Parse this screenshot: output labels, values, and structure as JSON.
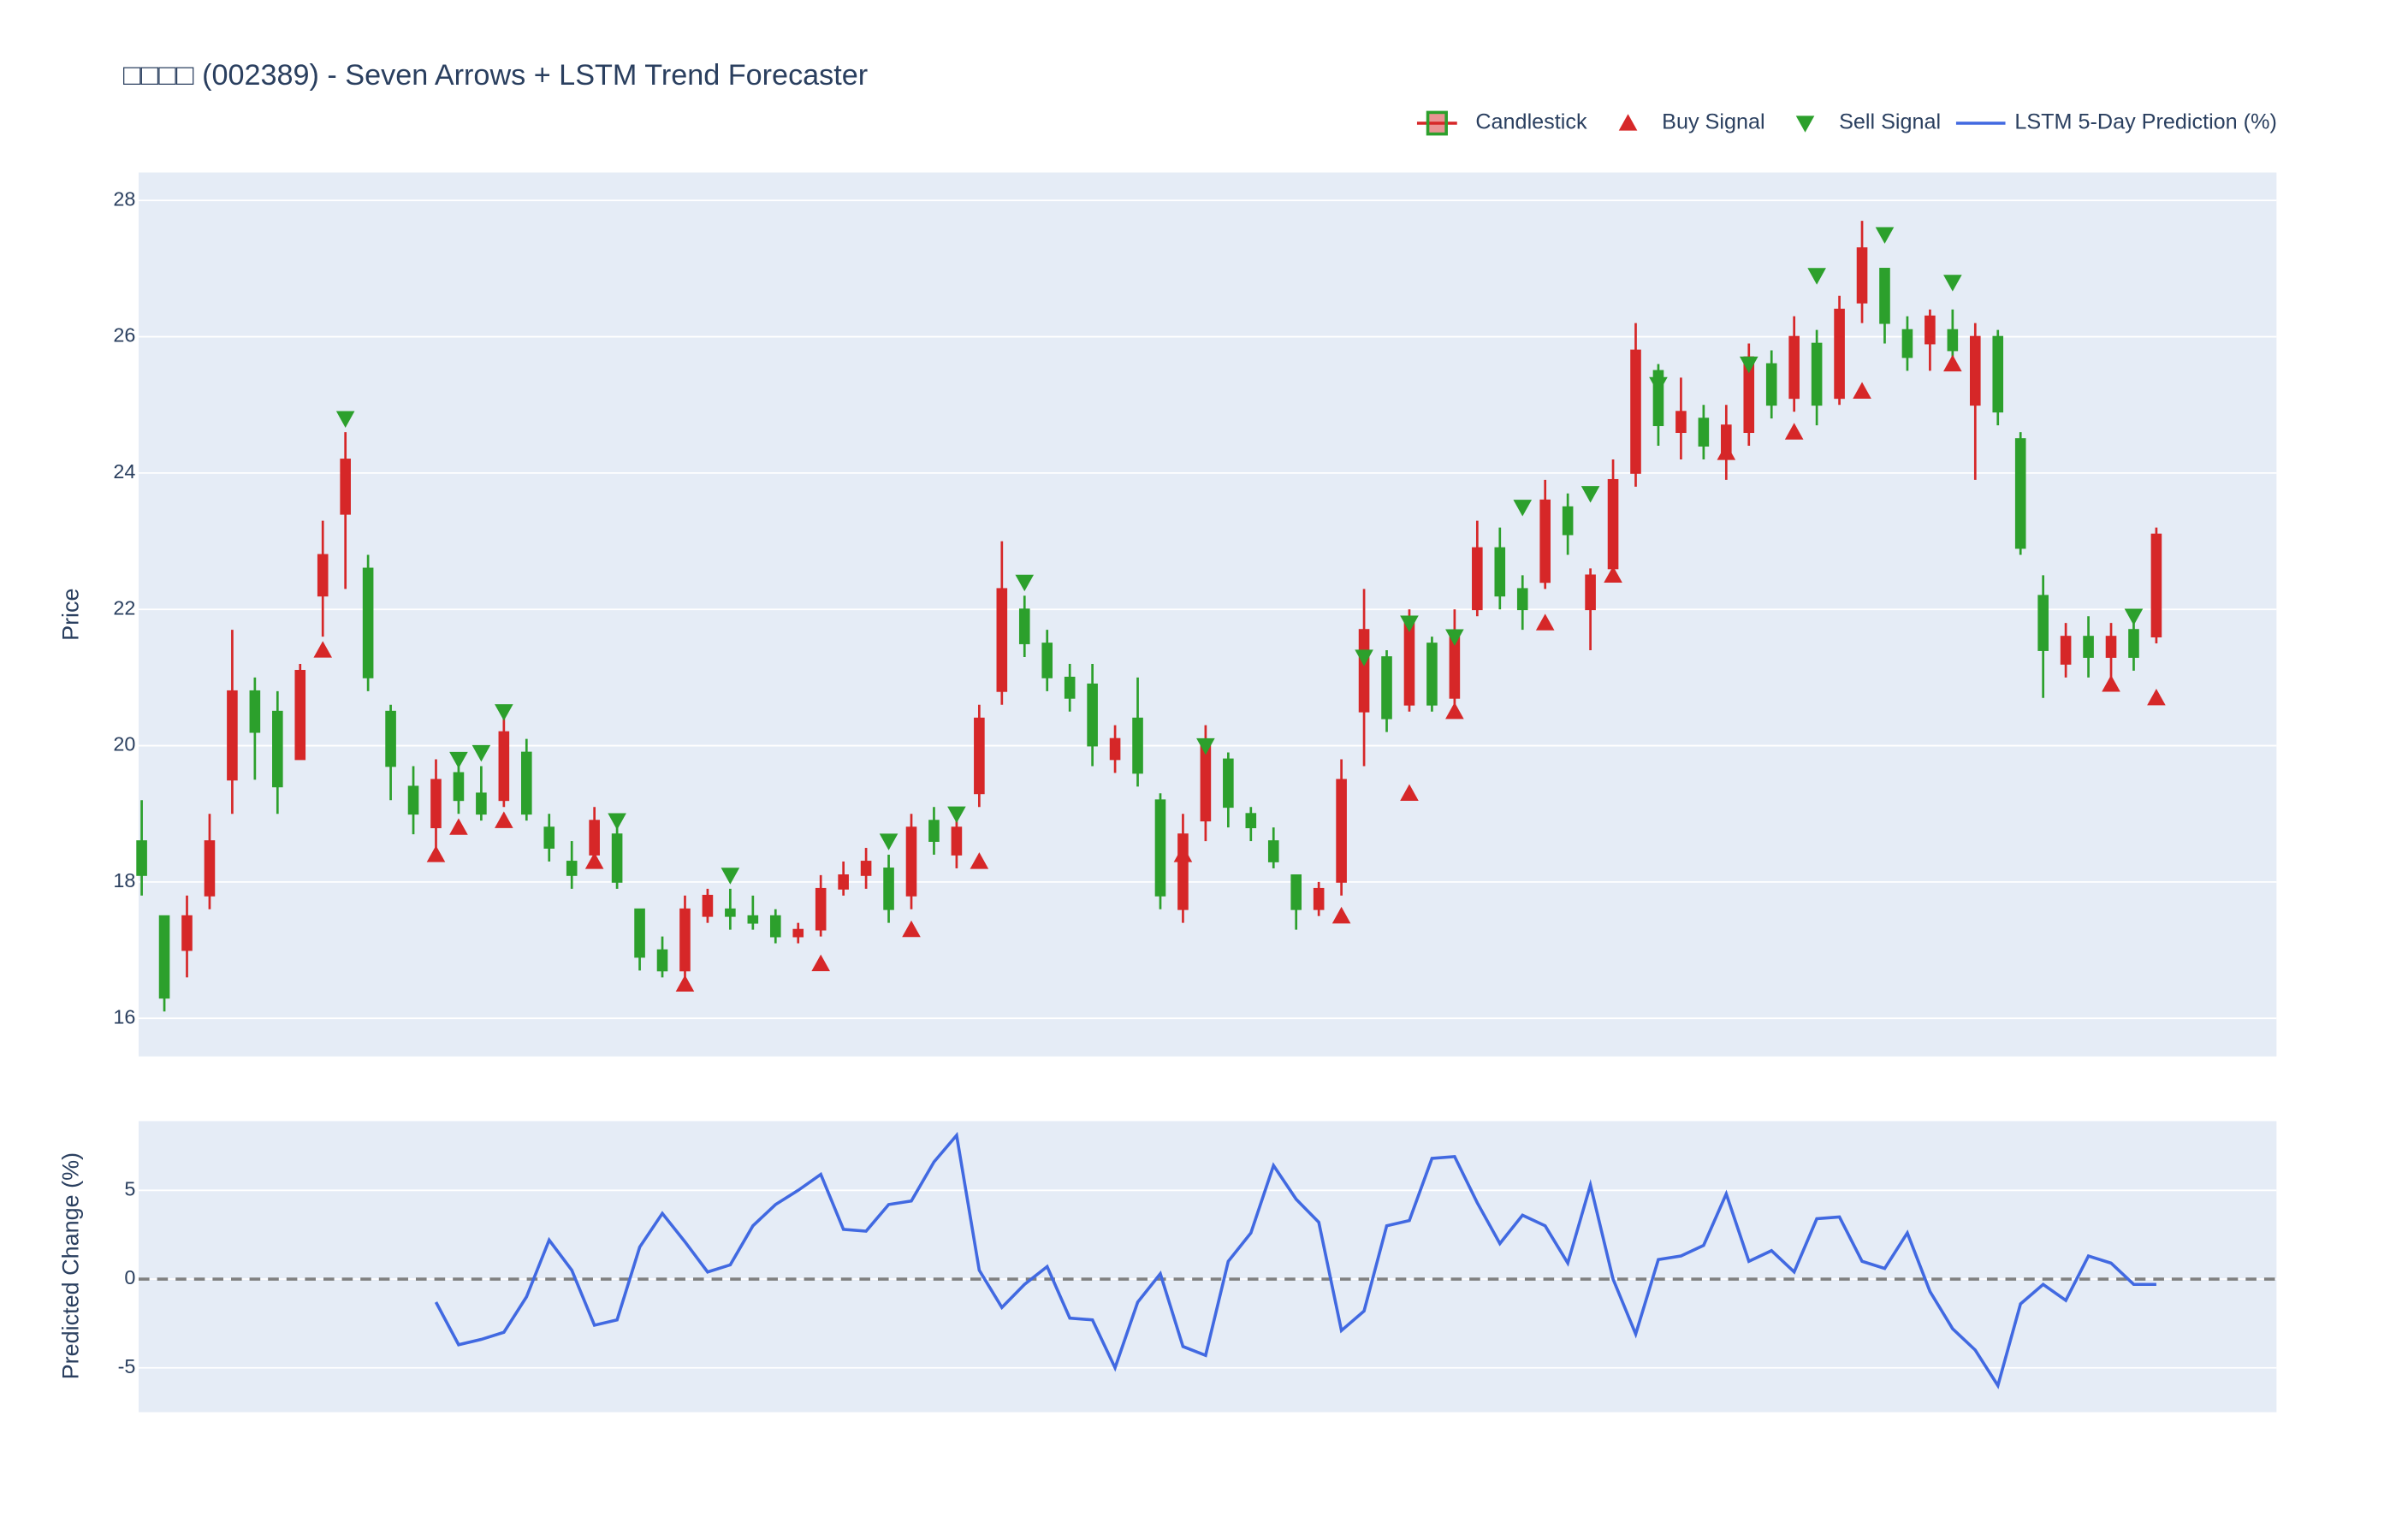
{
  "chart_data": [
    {
      "type": "candlestick",
      "title": "□□□□ (002389) - Seven Arrows + LSTM Trend Forecaster",
      "ylabel": "Price",
      "ylim": [
        15.44,
        28.41
      ],
      "yticks": [
        16,
        18,
        20,
        22,
        24,
        26,
        28
      ],
      "grid": true,
      "legend": "top-right",
      "candles": {
        "name": "Candlestick",
        "increasing_color": "#d62728",
        "decreasing_color": "#2ca02c",
        "open": [
          18.6,
          17.5,
          17.0,
          17.8,
          19.5,
          20.8,
          20.5,
          19.8,
          22.2,
          23.4,
          22.6,
          20.5,
          19.4,
          18.8,
          19.6,
          19.3,
          19.2,
          19.9,
          18.8,
          18.3,
          18.4,
          18.7,
          17.6,
          17.0,
          16.7,
          17.5,
          17.6,
          17.5,
          17.5,
          17.2,
          17.3,
          17.9,
          18.1,
          18.2,
          17.8,
          18.9,
          18.4,
          19.3,
          20.8,
          22.0,
          21.5,
          21.0,
          20.9,
          19.8,
          20.4,
          19.2,
          17.6,
          18.9,
          19.8,
          19.0,
          18.6,
          18.1,
          17.6,
          18.0,
          20.5,
          21.3,
          20.6,
          21.5,
          20.7,
          22.0,
          22.9,
          22.3,
          22.4,
          23.5,
          22.0,
          22.6,
          24.0,
          25.5,
          24.6,
          24.8,
          24.3,
          24.6,
          25.6,
          25.1,
          25.9,
          25.1,
          26.5,
          27.0,
          26.1,
          25.9,
          26.1,
          25.0,
          26.0,
          24.5,
          22.2,
          21.2,
          21.6,
          21.3,
          21.7,
          21.6
        ],
        "high": [
          19.2,
          17.5,
          17.8,
          19.0,
          21.7,
          21.0,
          20.8,
          21.2,
          23.3,
          24.6,
          22.8,
          20.6,
          19.7,
          19.8,
          19.8,
          19.7,
          20.5,
          20.1,
          19.0,
          18.6,
          19.1,
          18.9,
          17.6,
          17.2,
          17.8,
          17.9,
          17.9,
          17.8,
          17.6,
          17.4,
          18.1,
          18.3,
          18.5,
          18.4,
          19.0,
          19.1,
          19.0,
          20.6,
          23.0,
          22.2,
          21.7,
          21.2,
          21.2,
          20.3,
          21.0,
          19.3,
          19.0,
          20.3,
          19.9,
          19.1,
          18.8,
          18.1,
          18.0,
          19.8,
          22.3,
          21.4,
          22.0,
          21.6,
          22.0,
          23.3,
          23.2,
          22.5,
          23.9,
          23.7,
          22.6,
          24.2,
          26.2,
          25.6,
          25.4,
          25.0,
          25.0,
          25.9,
          25.8,
          26.3,
          26.1,
          26.6,
          27.7,
          27.0,
          26.3,
          26.4,
          26.4,
          26.2,
          26.1,
          24.6,
          22.5,
          21.8,
          21.9,
          21.8,
          21.8,
          23.2
        ],
        "low": [
          17.8,
          16.1,
          16.6,
          17.6,
          19.0,
          19.5,
          19.0,
          19.8,
          21.6,
          22.3,
          20.8,
          19.2,
          18.7,
          18.3,
          19.0,
          18.9,
          19.1,
          18.9,
          18.3,
          17.9,
          18.3,
          17.9,
          16.7,
          16.6,
          16.5,
          17.4,
          17.3,
          17.3,
          17.1,
          17.1,
          17.2,
          17.8,
          17.9,
          17.4,
          17.6,
          18.4,
          18.2,
          19.1,
          20.6,
          21.3,
          20.8,
          20.5,
          19.7,
          19.6,
          19.4,
          17.6,
          17.4,
          18.6,
          18.8,
          18.6,
          18.2,
          17.3,
          17.5,
          17.8,
          19.7,
          20.2,
          20.5,
          20.5,
          20.6,
          21.9,
          22.0,
          21.7,
          22.3,
          22.8,
          21.4,
          22.5,
          23.8,
          24.4,
          24.2,
          24.2,
          23.9,
          24.4,
          24.8,
          24.9,
          24.7,
          25.0,
          26.2,
          25.9,
          25.5,
          25.5,
          25.6,
          23.9,
          24.7,
          22.8,
          20.7,
          21.0,
          21.0,
          20.9,
          21.1,
          21.5
        ],
        "close": [
          18.1,
          16.3,
          17.5,
          18.6,
          20.8,
          20.2,
          19.4,
          21.1,
          22.8,
          24.2,
          21.0,
          19.7,
          19.0,
          19.5,
          19.2,
          19.0,
          20.2,
          19.0,
          18.5,
          18.1,
          18.9,
          18.0,
          16.9,
          16.7,
          17.6,
          17.8,
          17.5,
          17.4,
          17.2,
          17.3,
          17.9,
          18.1,
          18.3,
          17.6,
          18.8,
          18.6,
          18.8,
          20.4,
          22.3,
          21.5,
          21.0,
          20.7,
          20.0,
          20.1,
          19.6,
          17.8,
          18.7,
          20.0,
          19.1,
          18.8,
          18.3,
          17.6,
          17.9,
          19.5,
          21.7,
          20.4,
          21.8,
          20.6,
          21.6,
          22.9,
          22.2,
          22.0,
          23.6,
          23.1,
          22.5,
          23.9,
          25.8,
          24.7,
          24.9,
          24.4,
          24.7,
          25.7,
          25.0,
          26.0,
          25.0,
          26.4,
          27.3,
          26.2,
          25.7,
          26.3,
          25.8,
          26.0,
          24.9,
          22.9,
          21.4,
          21.6,
          21.3,
          21.6,
          21.3,
          23.1
        ]
      },
      "signals": [
        {
          "name": "Buy Signal",
          "color": "#d62728",
          "marker": "triangle-up",
          "values": [
            null,
            null,
            null,
            null,
            null,
            null,
            null,
            null,
            21.4,
            null,
            null,
            null,
            null,
            18.4,
            18.8,
            null,
            18.9,
            null,
            null,
            null,
            18.3,
            null,
            null,
            null,
            16.5,
            null,
            null,
            null,
            null,
            null,
            16.8,
            null,
            null,
            null,
            17.3,
            null,
            null,
            18.3,
            null,
            null,
            null,
            null,
            null,
            null,
            null,
            null,
            18.4,
            null,
            null,
            null,
            null,
            null,
            null,
            17.5,
            null,
            null,
            19.3,
            null,
            20.5,
            null,
            null,
            null,
            21.8,
            null,
            null,
            22.5,
            null,
            null,
            null,
            null,
            24.3,
            null,
            null,
            24.6,
            null,
            null,
            25.2,
            null,
            null,
            null,
            25.6,
            null,
            null,
            null,
            null,
            null,
            null,
            20.9,
            null,
            20.7
          ]
        },
        {
          "name": "Sell Signal",
          "color": "#2ca02c",
          "marker": "triangle-down",
          "values": [
            null,
            null,
            null,
            null,
            null,
            null,
            null,
            null,
            null,
            24.8,
            null,
            null,
            null,
            null,
            19.8,
            19.9,
            20.5,
            null,
            null,
            null,
            null,
            18.9,
            null,
            null,
            null,
            null,
            18.1,
            null,
            null,
            null,
            null,
            null,
            null,
            18.6,
            null,
            null,
            19.0,
            null,
            null,
            22.4,
            null,
            null,
            null,
            null,
            null,
            null,
            null,
            20.0,
            null,
            null,
            null,
            null,
            null,
            null,
            21.3,
            null,
            21.8,
            null,
            21.6,
            null,
            null,
            23.5,
            null,
            null,
            23.7,
            null,
            null,
            25.3,
            null,
            null,
            null,
            25.6,
            null,
            null,
            26.9,
            null,
            null,
            27.5,
            null,
            null,
            26.8,
            null,
            null,
            null,
            null,
            null,
            null,
            null,
            21.9,
            null
          ]
        }
      ]
    },
    {
      "type": "line",
      "ylabel": "Predicted Change (%)",
      "ylim": [
        -7.5,
        8.9
      ],
      "yticks": [
        -5,
        0,
        5
      ],
      "grid": true,
      "reference_line": 0,
      "series": [
        {
          "name": "LSTM 5-Day Prediction (%)",
          "color": "#4169e1",
          "values": [
            null,
            null,
            null,
            null,
            null,
            null,
            null,
            null,
            null,
            null,
            null,
            null,
            null,
            -1.3,
            -3.7,
            -3.4,
            -3.0,
            -1.0,
            2.2,
            0.5,
            -2.6,
            -2.3,
            1.8,
            3.7,
            2.1,
            0.4,
            0.8,
            3.0,
            4.2,
            5.0,
            5.9,
            2.8,
            2.7,
            4.2,
            4.4,
            6.6,
            8.1,
            0.5,
            -1.6,
            -0.3,
            0.7,
            -2.2,
            -2.3,
            -5.0,
            -1.3,
            0.3,
            -3.8,
            -4.3,
            1.0,
            2.6,
            6.4,
            4.5,
            3.2,
            -2.9,
            -1.8,
            3.0,
            3.3,
            6.8,
            6.9,
            4.3,
            2.0,
            3.6,
            3.0,
            0.9,
            5.3,
            0.0,
            -3.1,
            1.1,
            1.3,
            1.9,
            4.8,
            1.0,
            1.6,
            0.4,
            3.4,
            3.5,
            1.0,
            0.6,
            2.6,
            -0.7,
            -2.8,
            -4.0,
            -6.0,
            -1.4,
            -0.3,
            -1.2,
            1.3,
            0.9,
            -0.3,
            -0.3
          ]
        }
      ]
    }
  ]
}
